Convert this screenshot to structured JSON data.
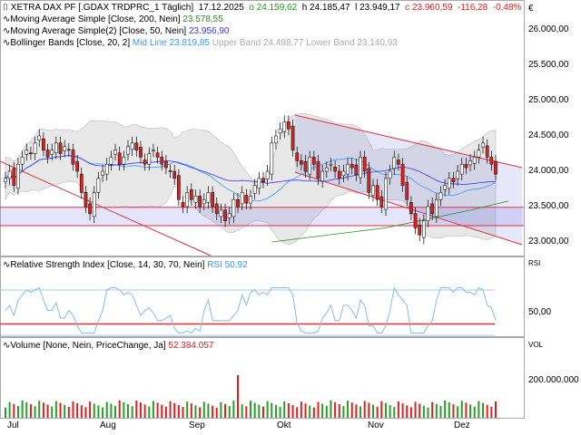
{
  "header": {
    "symbol": "XETRA DAX PF [.GDAX TRDPRC_1 Täglich]",
    "date": "17.12.2025",
    "open": "o 24.159,62",
    "high": "h 24.185,47",
    "low": "l 23.949,17",
    "close": "c 23.960,59",
    "change": "-116,28",
    "change_pct": "-0,48%"
  },
  "indicators": {
    "ma200": {
      "label": "Moving Average Simple  [Close, 200, Nein]",
      "value": "23.578,55"
    },
    "ma50": {
      "label": "Moving Average Simple(2)  [Close, 50, Nein]",
      "value": "23.956,90"
    },
    "bb": {
      "label": "Bollinger Bands  [Close, 20, 2]",
      "mid": "Mid Line 23.819,85",
      "upper": "Upper Band 24.498,77",
      "lower": "Lower Band 23.140,93"
    },
    "rsi": {
      "label": "Relative Strength Index  [Close, 14, 30, 70, Nein]",
      "value": "RSI 50,92",
      "axis_title": "RSI",
      "tick": "50,00"
    },
    "volume": {
      "label": "Volume  [None, Nein, PriceChange, Ja]",
      "value": "52.384.057",
      "axis_title": "VOL",
      "tick": "200.000.000"
    }
  },
  "price_axis": {
    "currency": "€",
    "ticks": [
      "26.000,00",
      "25.500,00",
      "25.000,00",
      "24.500,00",
      "24.000,00",
      "23.500,00",
      "23.000,00"
    ]
  },
  "colors": {
    "up": "#ffffff",
    "down": "#e02020",
    "ma200": "#2e8b2e",
    "ma50": "#3333ff",
    "bb_mid": "#3399ff",
    "bb_fill": "#e8e8e8",
    "trend": "#e03040",
    "rsi": "#88bbee"
  },
  "chart_data": {
    "type": "candlestick",
    "x_labels": [
      "Jul",
      "Aug",
      "Sep",
      "Okt",
      "Nov",
      "Dez"
    ],
    "y_range": [
      22800,
      26400
    ],
    "closes": [
      23900,
      24000,
      23800,
      24100,
      24200,
      24300,
      24250,
      24400,
      24500,
      24300,
      24200,
      24300,
      24400,
      24250,
      24350,
      24300,
      24100,
      24000,
      23700,
      23500,
      23400,
      23700,
      23900,
      24000,
      24100,
      24200,
      24300,
      24100,
      24200,
      24350,
      24400,
      24300,
      24200,
      24100,
      24250,
      24300,
      24200,
      24100,
      24050,
      24000,
      23900,
      23600,
      23500,
      23700,
      23600,
      23650,
      23500,
      23600,
      23700,
      23500,
      23400,
      23450,
      23300,
      23400,
      23600,
      23500,
      23700,
      23550,
      23650,
      23800,
      23900,
      23850,
      24000,
      24400,
      24500,
      24600,
      24700,
      24600,
      24300,
      24150,
      24100,
      24000,
      24200,
      24100,
      23900,
      24000,
      24050,
      24100,
      24000,
      23900,
      24000,
      24100,
      24050,
      23950,
      24200,
      24000,
      23700,
      23800,
      23600,
      23500,
      23900,
      24000,
      24200,
      24100,
      23800,
      23600,
      23400,
      23200,
      23100,
      23300,
      23500,
      23400,
      23600,
      23700,
      23800,
      23900,
      23850,
      24000,
      24100,
      24050,
      24150,
      24200,
      24300,
      24400,
      24200,
      24100,
      23960
    ],
    "ma200": [
      [
        63,
        23000
      ],
      [
        90,
        23200
      ],
      [
        110,
        23450
      ],
      [
        119,
        23578.55
      ]
    ],
    "horizontal_lines": [
      23490,
      23230
    ],
    "rsi_levels": [
      70,
      30,
      40
    ],
    "volume_spike_index": 55,
    "volume_spike": 230000000
  }
}
